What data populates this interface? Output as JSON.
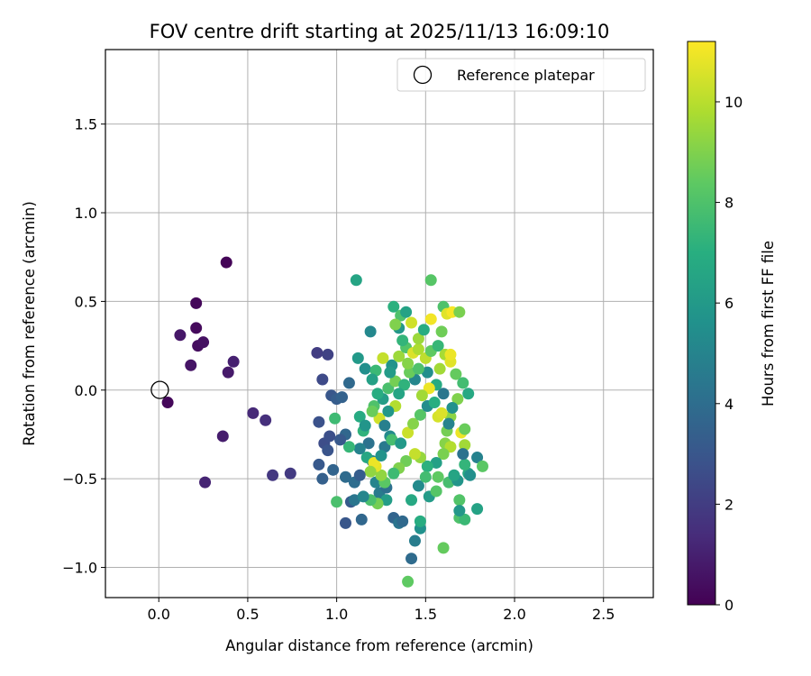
{
  "chart_data": {
    "type": "scatter",
    "title": "FOV centre drift starting at 2025/11/13 16:09:10",
    "xlabel": "Angular distance from reference (arcmin)",
    "ylabel": "Rotation from reference (arcmin)",
    "xlim": [
      -0.3,
      2.78
    ],
    "ylim": [
      -1.17,
      1.92
    ],
    "x_ticks": [
      0.0,
      0.5,
      1.0,
      1.5,
      2.0,
      2.5
    ],
    "x_tick_labels": [
      "0.0",
      "0.5",
      "1.0",
      "1.5",
      "2.0",
      "2.5"
    ],
    "y_ticks": [
      -1.0,
      -0.5,
      0.0,
      0.5,
      1.0,
      1.5
    ],
    "y_tick_labels": [
      "−1.0",
      "−0.5",
      "0.0",
      "0.5",
      "1.0",
      "1.5"
    ],
    "grid": true,
    "legend": {
      "position": "top-right",
      "label": "Reference platepar"
    },
    "reference_point": {
      "x": 0.0,
      "y": 0.0
    },
    "colorbar": {
      "label": "Hours from first FF file",
      "min": 0,
      "max": 11.2,
      "colormap": "viridis",
      "ticks": [
        0,
        2,
        4,
        6,
        8,
        10
      ],
      "tick_labels": [
        "0",
        "2",
        "4",
        "6",
        "8",
        "10"
      ]
    },
    "points": [
      [
        0.38,
        0.72,
        0.1
      ],
      [
        0.21,
        0.49,
        0.2
      ],
      [
        0.21,
        0.35,
        0.3
      ],
      [
        0.22,
        0.25,
        0.4
      ],
      [
        0.25,
        0.27,
        0.5
      ],
      [
        0.18,
        0.14,
        0.6
      ],
      [
        0.12,
        0.31,
        0.7
      ],
      [
        0.05,
        -0.07,
        0.2
      ],
      [
        0.39,
        0.1,
        0.8
      ],
      [
        0.42,
        0.16,
        1.0
      ],
      [
        0.36,
        -0.26,
        0.9
      ],
      [
        0.26,
        -0.52,
        1.1
      ],
      [
        0.53,
        -0.13,
        1.3
      ],
      [
        0.6,
        -0.17,
        1.5
      ],
      [
        0.64,
        -0.48,
        1.8
      ],
      [
        0.74,
        -0.47,
        1.9
      ],
      [
        0.89,
        0.21,
        2.0
      ],
      [
        0.95,
        0.2,
        2.2
      ],
      [
        0.92,
        0.06,
        2.5
      ],
      [
        0.9,
        -0.18,
        2.8
      ],
      [
        0.97,
        -0.03,
        3.0
      ],
      [
        1.0,
        -0.05,
        3.3
      ],
      [
        1.03,
        -0.04,
        3.5
      ],
      [
        1.07,
        0.04,
        3.8
      ],
      [
        0.93,
        -0.3,
        2.6
      ],
      [
        0.95,
        -0.34,
        2.9
      ],
      [
        0.9,
        -0.42,
        3.1
      ],
      [
        0.92,
        -0.5,
        3.4
      ],
      [
        0.98,
        -0.45,
        3.6
      ],
      [
        1.05,
        -0.49,
        3.9
      ],
      [
        1.08,
        -0.63,
        3.2
      ],
      [
        1.05,
        -0.75,
        3.0
      ],
      [
        1.14,
        -0.73,
        3.7
      ],
      [
        1.1,
        -0.62,
        4.4
      ],
      [
        1.11,
        0.62,
        6.5
      ],
      [
        1.19,
        0.33,
        5.2
      ],
      [
        1.12,
        0.18,
        6.0
      ],
      [
        1.16,
        0.12,
        5.5
      ],
      [
        1.13,
        -0.15,
        6.8
      ],
      [
        1.15,
        -0.23,
        7.2
      ],
      [
        1.18,
        -0.3,
        4.2
      ],
      [
        1.2,
        -0.4,
        4.8
      ],
      [
        1.22,
        -0.52,
        5.0
      ],
      [
        1.24,
        -0.58,
        4.6
      ],
      [
        1.28,
        -0.55,
        4.1
      ],
      [
        1.32,
        -0.72,
        3.6
      ],
      [
        1.35,
        -0.75,
        4.3
      ],
      [
        1.37,
        -0.74,
        3.8
      ],
      [
        1.42,
        -0.95,
        3.9
      ],
      [
        1.44,
        -0.85,
        4.7
      ],
      [
        1.47,
        -0.78,
        5.6
      ],
      [
        1.4,
        -1.08,
        8.4
      ],
      [
        1.6,
        -0.89,
        8.5
      ],
      [
        1.47,
        -0.74,
        6.9
      ],
      [
        1.52,
        -0.6,
        6.1
      ],
      [
        1.56,
        -0.57,
        8.2
      ],
      [
        1.63,
        -0.52,
        7.8
      ],
      [
        1.69,
        -0.72,
        8.0
      ],
      [
        1.72,
        -0.73,
        7.5
      ],
      [
        1.69,
        -0.62,
        8.1
      ],
      [
        1.69,
        -0.68,
        5.9
      ],
      [
        1.79,
        -0.67,
        6.4
      ],
      [
        1.79,
        -0.38,
        4.9
      ],
      [
        1.82,
        -0.43,
        8.3
      ],
      [
        1.74,
        -0.47,
        6.6
      ],
      [
        1.68,
        -0.51,
        5.8
      ],
      [
        1.72,
        -0.42,
        7.3
      ],
      [
        1.72,
        -0.31,
        9.6
      ],
      [
        1.7,
        -0.24,
        10.9
      ],
      [
        1.72,
        -0.22,
        8.6
      ],
      [
        1.64,
        -0.15,
        9.2
      ],
      [
        1.57,
        -0.15,
        10.5
      ],
      [
        1.62,
        -0.23,
        8.8
      ],
      [
        1.61,
        -0.3,
        9.1
      ],
      [
        1.64,
        -0.32,
        9.9
      ],
      [
        1.6,
        -0.36,
        8.9
      ],
      [
        1.56,
        -0.41,
        6.3
      ],
      [
        1.51,
        -0.43,
        7.1
      ],
      [
        1.47,
        -0.38,
        9.4
      ],
      [
        1.44,
        -0.36,
        10.2
      ],
      [
        1.39,
        -0.4,
        8.7
      ],
      [
        1.35,
        -0.44,
        9.0
      ],
      [
        1.32,
        -0.47,
        7.6
      ],
      [
        1.27,
        -0.52,
        8.3
      ],
      [
        1.25,
        -0.48,
        9.3
      ],
      [
        1.22,
        -0.43,
        10.8
      ],
      [
        1.27,
        -0.32,
        4.5
      ],
      [
        1.3,
        -0.26,
        5.3
      ],
      [
        1.24,
        -0.16,
        10.4
      ],
      [
        1.21,
        -0.09,
        8.0
      ],
      [
        1.26,
        -0.05,
        6.2
      ],
      [
        1.29,
        0.01,
        7.9
      ],
      [
        1.33,
        0.05,
        8.8
      ],
      [
        1.31,
        0.14,
        5.7
      ],
      [
        1.35,
        0.19,
        9.5
      ],
      [
        1.39,
        0.24,
        8.1
      ],
      [
        1.43,
        0.21,
        10.6
      ],
      [
        1.46,
        0.23,
        9.8
      ],
      [
        1.5,
        0.18,
        10.1
      ],
      [
        1.53,
        0.22,
        8.4
      ],
      [
        1.57,
        0.25,
        7.4
      ],
      [
        1.61,
        0.2,
        9.7
      ],
      [
        1.64,
        0.16,
        10.7
      ],
      [
        1.67,
        0.09,
        8.5
      ],
      [
        1.71,
        0.04,
        7.7
      ],
      [
        1.74,
        -0.02,
        6.7
      ],
      [
        1.68,
        -0.05,
        9.0
      ],
      [
        1.65,
        -0.1,
        5.6
      ],
      [
        1.6,
        -0.02,
        4.4
      ],
      [
        1.56,
        0.03,
        6.8
      ],
      [
        1.52,
        0.01,
        10.9
      ],
      [
        1.48,
        -0.03,
        9.6
      ],
      [
        1.44,
        0.06,
        5.1
      ],
      [
        1.41,
        0.1,
        8.6
      ],
      [
        1.38,
        0.03,
        7.2
      ],
      [
        1.35,
        -0.02,
        6.5
      ],
      [
        1.33,
        -0.09,
        9.9
      ],
      [
        1.29,
        -0.12,
        5.9
      ],
      [
        1.27,
        -0.2,
        4.8
      ],
      [
        1.31,
        -0.28,
        7.8
      ],
      [
        1.36,
        -0.3,
        6.0
      ],
      [
        1.4,
        -0.24,
        10.3
      ],
      [
        1.43,
        -0.19,
        9.1
      ],
      [
        1.47,
        -0.14,
        8.2
      ],
      [
        1.51,
        -0.09,
        5.4
      ],
      [
        1.55,
        -0.07,
        7.0
      ],
      [
        1.59,
        -0.13,
        10.6
      ],
      [
        1.63,
        -0.19,
        5.0
      ],
      [
        1.53,
        0.62,
        8.2
      ],
      [
        1.32,
        0.47,
        7.1
      ],
      [
        1.36,
        0.42,
        8.0
      ],
      [
        1.39,
        0.44,
        6.4
      ],
      [
        1.35,
        0.35,
        5.9
      ],
      [
        1.33,
        0.37,
        9.0
      ],
      [
        1.42,
        0.38,
        10.4
      ],
      [
        1.46,
        0.29,
        9.5
      ],
      [
        1.49,
        0.34,
        6.9
      ],
      [
        1.53,
        0.4,
        11.0
      ],
      [
        1.59,
        0.33,
        8.7
      ],
      [
        1.6,
        0.47,
        8.0
      ],
      [
        1.62,
        0.43,
        10.7
      ],
      [
        1.65,
        0.44,
        11.1
      ],
      [
        1.69,
        0.44,
        8.9
      ],
      [
        1.64,
        0.2,
        10.9
      ],
      [
        1.58,
        0.12,
        9.6
      ],
      [
        1.51,
        0.1,
        5.5
      ],
      [
        1.46,
        0.12,
        8.0
      ],
      [
        1.4,
        0.15,
        9.1
      ],
      [
        1.37,
        0.28,
        7.3
      ],
      [
        1.3,
        0.1,
        6.1
      ],
      [
        1.26,
        0.18,
        10.2
      ],
      [
        1.22,
        0.11,
        7.5
      ],
      [
        1.2,
        0.06,
        6.3
      ],
      [
        1.23,
        -0.02,
        6.9
      ],
      [
        1.2,
        -0.12,
        8.6
      ],
      [
        1.16,
        -0.2,
        5.8
      ],
      [
        1.13,
        -0.33,
        4.9
      ],
      [
        1.17,
        -0.38,
        6.6
      ],
      [
        1.21,
        -0.41,
        10.9
      ],
      [
        1.19,
        -0.46,
        9.3
      ],
      [
        1.25,
        -0.37,
        5.7
      ],
      [
        1.28,
        -0.62,
        6.2
      ],
      [
        1.23,
        -0.64,
        8.8
      ],
      [
        1.19,
        -0.62,
        7.9
      ],
      [
        1.15,
        -0.6,
        5.1
      ],
      [
        1.1,
        -0.52,
        4.0
      ],
      [
        1.13,
        -0.48,
        3.3
      ],
      [
        1.07,
        -0.32,
        7.4
      ],
      [
        1.05,
        -0.25,
        3.7
      ],
      [
        1.02,
        -0.28,
        3.1
      ],
      [
        0.99,
        -0.16,
        7.6
      ],
      [
        0.96,
        -0.26,
        2.7
      ],
      [
        1.0,
        -0.63,
        7.9
      ],
      [
        1.42,
        -0.62,
        6.7
      ],
      [
        1.46,
        -0.54,
        5.3
      ],
      [
        1.5,
        -0.49,
        7.7
      ],
      [
        1.57,
        -0.49,
        8.4
      ],
      [
        1.66,
        -0.48,
        6.5
      ],
      [
        1.71,
        -0.36,
        4.2
      ],
      [
        1.75,
        -0.48,
        5.5
      ]
    ]
  }
}
